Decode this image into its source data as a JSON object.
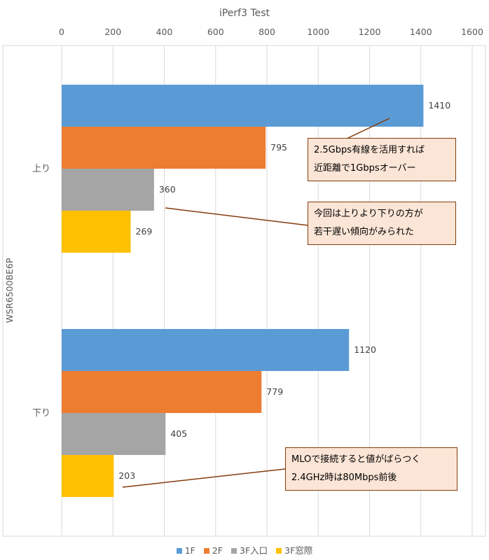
{
  "chart_data": {
    "type": "bar",
    "orientation": "horizontal",
    "title": "iPerf3 Test",
    "ylabel": "WSR6500BE6P",
    "categories": [
      "上り",
      "下り"
    ],
    "xlim": [
      0,
      1600
    ],
    "xticks": [
      0,
      200,
      400,
      600,
      800,
      1000,
      1200,
      1400,
      1600
    ],
    "xaxis_position": "top",
    "grid": true,
    "legend_position": "bottom",
    "series": [
      {
        "name": "1F",
        "color": "#5b9bd5",
        "values": [
          1410,
          1120
        ]
      },
      {
        "name": "2F",
        "color": "#ed7d31",
        "values": [
          795,
          779
        ]
      },
      {
        "name": "3F入口",
        "color": "#a5a5a5",
        "values": [
          360,
          405
        ]
      },
      {
        "name": "3F窓際",
        "color": "#ffc000",
        "values": [
          269,
          203
        ]
      }
    ],
    "annotations": [
      {
        "lines": [
          "2.5Gbps有線を活用すれば",
          "近距離で1Gbpsオーバー"
        ]
      },
      {
        "lines": [
          "今回は上りより下りの方が",
          "若干遅い傾向がみられた"
        ]
      },
      {
        "lines": [
          "MLOで接続すると値がばらつく",
          "2.4GHz時は80Mbps前後"
        ]
      }
    ]
  }
}
